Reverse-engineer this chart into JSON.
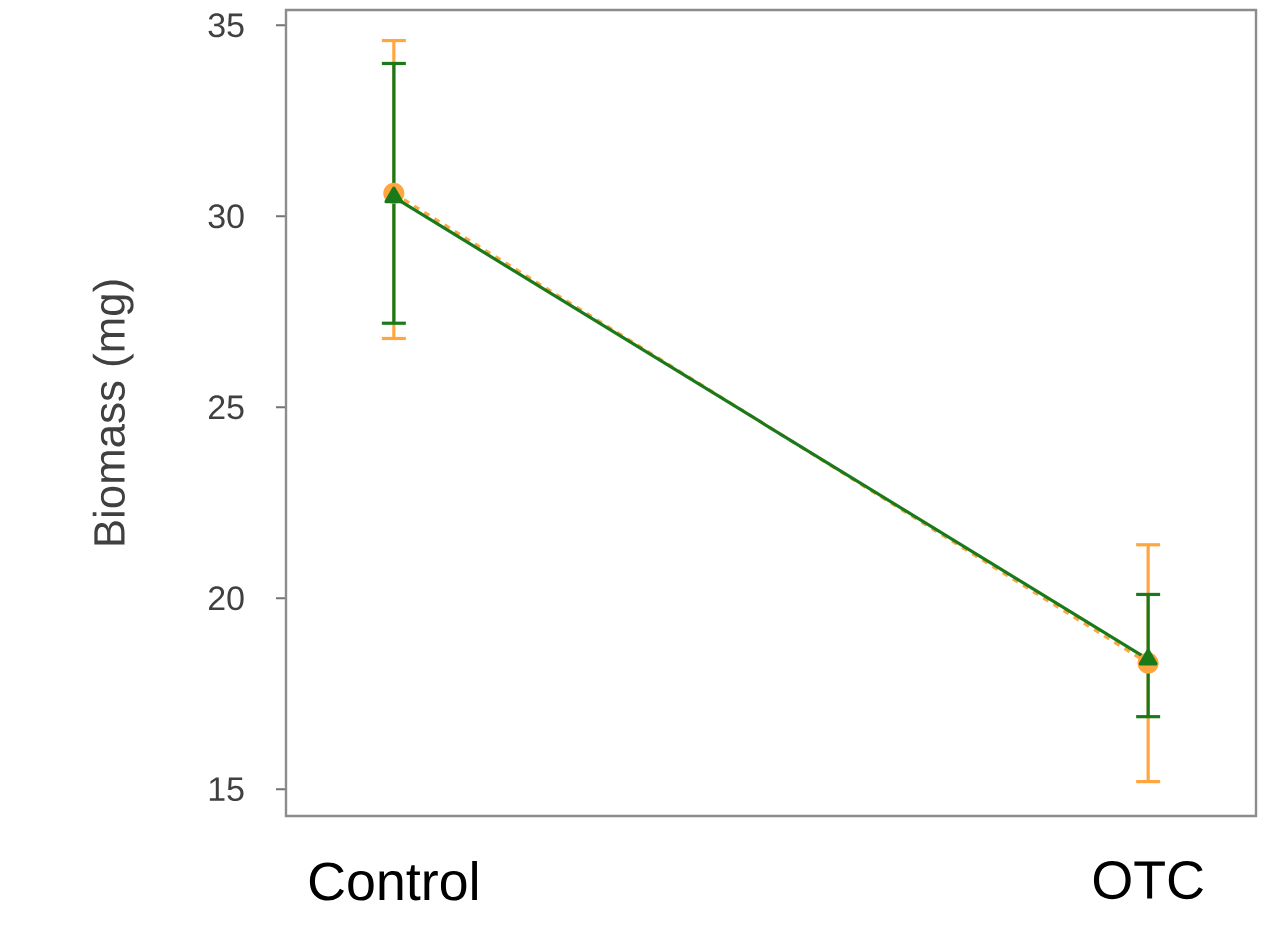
{
  "chart_data": {
    "type": "line",
    "ylabel": "Biomass (mg)",
    "categories": [
      "Control",
      "OTC"
    ],
    "ylim": [
      14.3,
      35.4
    ],
    "yticks": [
      15,
      20,
      25,
      30,
      35
    ],
    "grid": false,
    "series": [
      {
        "color": "#ffa640",
        "values": [
          30.6,
          18.3
        ],
        "errors": [
          [
            26.8,
            34.6
          ],
          [
            15.2,
            21.4
          ]
        ],
        "marker": "circle",
        "line_style": "dashed"
      },
      {
        "color": "#1a7a1a",
        "values": [
          30.5,
          18.4
        ],
        "errors": [
          [
            27.2,
            34.0
          ],
          [
            16.9,
            20.1
          ]
        ],
        "marker": "triangle",
        "line_style": "solid"
      }
    ]
  }
}
